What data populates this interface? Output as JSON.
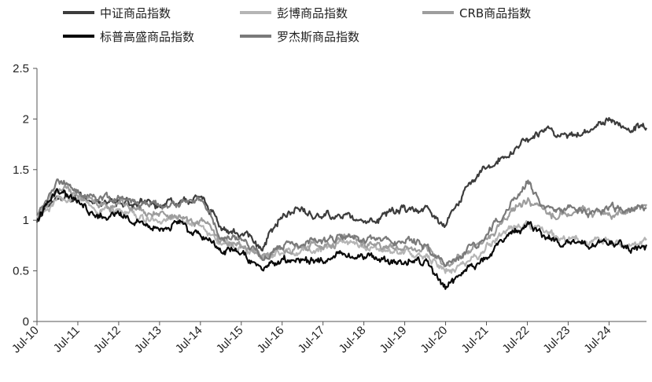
{
  "chart_data": {
    "type": "line",
    "title": "",
    "xlabel": "",
    "ylabel": "",
    "ylim": [
      0,
      2.5
    ],
    "yticks": [
      {
        "value": 0,
        "label": "0"
      },
      {
        "value": 0.5,
        "label": "0.5"
      },
      {
        "value": 1,
        "label": "1"
      },
      {
        "value": 1.5,
        "label": "1.5"
      },
      {
        "value": 2,
        "label": "2"
      },
      {
        "value": 2.5,
        "label": "2.5"
      }
    ],
    "x_start": "2010-07",
    "x_end": "2025-06",
    "xticks": [
      {
        "date": "2010-07",
        "label": "Jul-10"
      },
      {
        "date": "2011-07",
        "label": "Jul-11"
      },
      {
        "date": "2012-07",
        "label": "Jul-12"
      },
      {
        "date": "2013-07",
        "label": "Jul-13"
      },
      {
        "date": "2014-07",
        "label": "Jul-14"
      },
      {
        "date": "2015-07",
        "label": "Jul-15"
      },
      {
        "date": "2016-07",
        "label": "Jul-16"
      },
      {
        "date": "2017-07",
        "label": "Jul-17"
      },
      {
        "date": "2018-07",
        "label": "Jul-18"
      },
      {
        "date": "2019-07",
        "label": "Jul-19"
      },
      {
        "date": "2020-07",
        "label": "Jul-20"
      },
      {
        "date": "2021-07",
        "label": "Jul-21"
      },
      {
        "date": "2022-07",
        "label": "Jul-22"
      },
      {
        "date": "2023-07",
        "label": "Jul-23"
      },
      {
        "date": "2024-07",
        "label": "Jul-24"
      }
    ],
    "grid": false,
    "legend_position": "top",
    "x": [
      "2010-07",
      "2011-01",
      "2011-07",
      "2012-01",
      "2012-07",
      "2013-01",
      "2013-07",
      "2014-01",
      "2014-07",
      "2015-01",
      "2015-07",
      "2016-01",
      "2016-07",
      "2017-01",
      "2017-07",
      "2018-01",
      "2018-07",
      "2019-01",
      "2019-07",
      "2020-01",
      "2020-07",
      "2021-01",
      "2021-07",
      "2022-01",
      "2022-07",
      "2023-01",
      "2023-07",
      "2024-01",
      "2024-07",
      "2025-01",
      "2025-06"
    ],
    "series": [
      {
        "name": "中证商品指数",
        "color": "#3c3c3c",
        "values": [
          1.0,
          1.2,
          1.25,
          1.15,
          1.2,
          1.15,
          1.15,
          1.2,
          1.25,
          0.95,
          0.85,
          0.7,
          1.05,
          1.1,
          1.05,
          1.05,
          1.0,
          1.05,
          1.1,
          1.1,
          0.95,
          1.3,
          1.5,
          1.65,
          1.8,
          1.95,
          1.8,
          1.9,
          2.0,
          1.9,
          1.95
        ]
      },
      {
        "name": "彭博商品指数",
        "color": "#b5b5b5",
        "values": [
          1.0,
          1.25,
          1.2,
          1.1,
          1.1,
          1.05,
          1.0,
          1.0,
          0.95,
          0.78,
          0.72,
          0.62,
          0.68,
          0.7,
          0.72,
          0.78,
          0.75,
          0.7,
          0.68,
          0.65,
          0.5,
          0.6,
          0.72,
          0.9,
          0.95,
          0.85,
          0.82,
          0.8,
          0.8,
          0.78,
          0.8
        ]
      },
      {
        "name": "CRB商品指数",
        "color": "#9d9d9d",
        "values": [
          1.05,
          1.3,
          1.25,
          1.15,
          1.15,
          1.1,
          1.05,
          1.05,
          1.0,
          0.8,
          0.75,
          0.65,
          0.72,
          0.75,
          0.75,
          0.82,
          0.8,
          0.75,
          0.72,
          0.7,
          0.55,
          0.68,
          0.82,
          1.05,
          1.2,
          1.05,
          1.05,
          1.08,
          1.1,
          1.1,
          1.15
        ]
      },
      {
        "name": "标普高盛商品指数",
        "color": "#0a0a0a",
        "values": [
          1.0,
          1.3,
          1.2,
          1.05,
          1.05,
          1.0,
          0.95,
          0.95,
          0.85,
          0.72,
          0.65,
          0.5,
          0.58,
          0.6,
          0.6,
          0.68,
          0.65,
          0.62,
          0.6,
          0.58,
          0.32,
          0.5,
          0.62,
          0.85,
          0.95,
          0.82,
          0.78,
          0.75,
          0.75,
          0.72,
          0.75
        ]
      },
      {
        "name": "罗杰斯商品指数",
        "color": "#7a7a7a",
        "values": [
          1.05,
          1.4,
          1.3,
          1.2,
          1.2,
          1.18,
          1.15,
          1.18,
          1.2,
          0.85,
          0.8,
          0.65,
          0.75,
          0.78,
          0.78,
          0.82,
          0.8,
          0.78,
          0.78,
          0.75,
          0.5,
          0.7,
          0.85,
          1.1,
          1.35,
          1.1,
          1.1,
          1.08,
          1.12,
          1.1,
          1.12
        ]
      }
    ]
  }
}
